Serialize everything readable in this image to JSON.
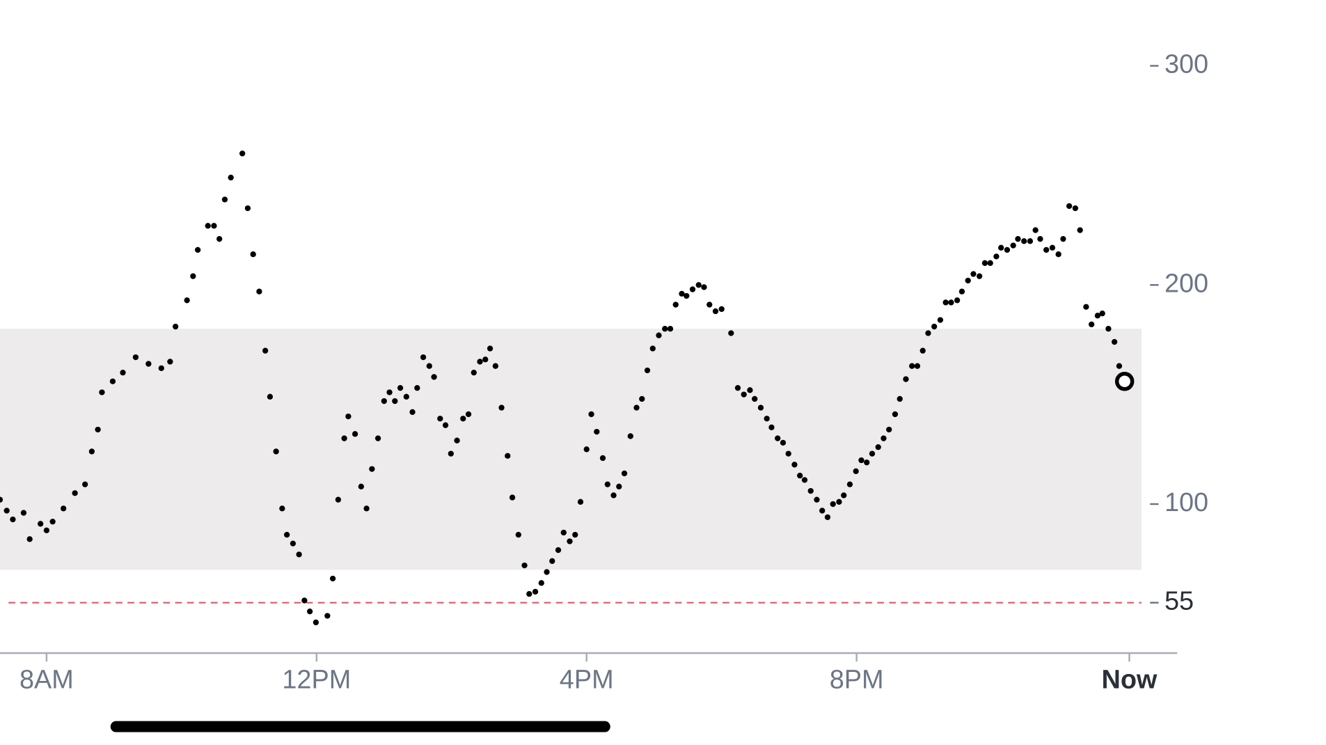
{
  "chart_data": {
    "type": "scatter",
    "xlim": [
      7.31,
      24.75
    ],
    "ylim": [
      32,
      330
    ],
    "xticks": [
      {
        "value": 8,
        "label": "8AM"
      },
      {
        "value": 12,
        "label": "12PM"
      },
      {
        "value": 16,
        "label": "4PM"
      },
      {
        "value": 20,
        "label": "8PM"
      },
      {
        "value": 24.04,
        "label": "Now"
      }
    ],
    "yticks": [
      55,
      100,
      200,
      300
    ],
    "target_range": [
      70,
      180
    ],
    "threshold": 55,
    "color": "#000000",
    "x": [
      7.31,
      7.41,
      7.5,
      7.66,
      7.75,
      7.91,
      8.0,
      8.09,
      8.25,
      8.42,
      8.57,
      8.67,
      8.76,
      8.82,
      8.98,
      9.13,
      9.32,
      9.51,
      9.7,
      9.83,
      9.91,
      10.08,
      10.17,
      10.24,
      10.39,
      10.48,
      10.56,
      10.64,
      10.73,
      10.9,
      10.98,
      11.06,
      11.15,
      11.24,
      11.31,
      11.4,
      11.49,
      11.56,
      11.65,
      11.74,
      11.82,
      11.9,
      11.99,
      12.16,
      12.24,
      12.32,
      12.41,
      12.47,
      12.57,
      12.66,
      12.74,
      12.82,
      12.91,
      13.0,
      13.08,
      13.16,
      13.24,
      13.33,
      13.42,
      13.49,
      13.58,
      13.67,
      13.74,
      13.83,
      13.91,
      13.99,
      14.08,
      14.17,
      14.25,
      14.33,
      14.42,
      14.5,
      14.57,
      14.65,
      14.74,
      14.83,
      14.9,
      14.99,
      15.08,
      15.15,
      15.24,
      15.33,
      15.41,
      15.49,
      15.58,
      15.66,
      15.75,
      15.83,
      15.91,
      16.0,
      16.07,
      16.15,
      16.24,
      16.31,
      16.4,
      16.48,
      16.56,
      16.65,
      16.74,
      16.82,
      16.9,
      16.98,
      17.07,
      17.16,
      17.24,
      17.32,
      17.41,
      17.48,
      17.57,
      17.66,
      17.74,
      17.82,
      17.91,
      18.0,
      18.14,
      18.24,
      18.33,
      18.42,
      18.49,
      18.58,
      18.67,
      18.74,
      18.83,
      18.91,
      18.99,
      19.08,
      19.16,
      19.23,
      19.32,
      19.41,
      19.49,
      19.57,
      19.65,
      19.74,
      19.81,
      19.9,
      19.99,
      20.07,
      20.15,
      20.23,
      20.32,
      20.4,
      20.48,
      20.57,
      20.64,
      20.73,
      20.82,
      20.9,
      20.98,
      21.06,
      21.15,
      21.24,
      21.32,
      21.4,
      21.49,
      21.56,
      21.65,
      21.73,
      21.82,
      21.9,
      21.98,
      22.07,
      22.14,
      22.23,
      22.32,
      22.39,
      22.48,
      22.57,
      22.65,
      22.72,
      22.81,
      22.9,
      22.99,
      23.06,
      23.15,
      23.24,
      23.31,
      23.4,
      23.48,
      23.57,
      23.64,
      23.73,
      23.82,
      23.89,
      23.97
    ],
    "values": [
      102,
      97,
      93,
      96,
      84,
      91,
      88,
      92,
      98,
      105,
      109,
      124,
      134,
      151,
      156,
      160,
      167,
      164,
      162,
      165,
      181,
      193,
      204,
      216,
      227,
      227,
      221,
      239,
      249,
      260,
      235,
      214,
      197,
      170,
      149,
      124,
      98,
      86,
      82,
      77,
      56,
      51,
      46,
      49,
      66,
      102,
      130,
      140,
      132,
      108,
      98,
      116,
      130,
      147,
      151,
      147,
      153,
      149,
      142,
      153,
      167,
      163,
      158,
      139,
      136,
      123,
      129,
      139,
      141,
      160,
      165,
      166,
      171,
      163,
      144,
      122,
      103,
      86,
      72,
      59,
      60,
      64,
      69,
      74,
      79,
      87,
      83,
      86,
      101,
      125,
      141,
      133,
      121,
      109,
      104,
      108,
      114,
      131,
      144,
      148,
      161,
      171,
      177,
      180,
      180,
      191,
      196,
      195,
      198,
      200,
      199,
      191,
      188,
      189,
      178,
      153,
      150,
      152,
      148,
      144,
      139,
      135,
      130,
      128,
      123,
      118,
      113,
      111,
      106,
      102,
      97,
      94,
      100,
      101,
      104,
      109,
      115,
      120,
      119,
      123,
      126,
      130,
      134,
      141,
      148,
      157,
      163,
      163,
      170,
      178,
      181,
      184,
      192,
      192,
      193,
      197,
      202,
      205,
      204,
      210,
      210,
      213,
      217,
      216,
      218,
      221,
      220,
      220,
      225,
      221,
      216,
      217,
      214,
      221,
      236,
      235,
      225,
      190,
      182,
      186,
      187,
      180,
      174,
      163,
      156
    ]
  }
}
